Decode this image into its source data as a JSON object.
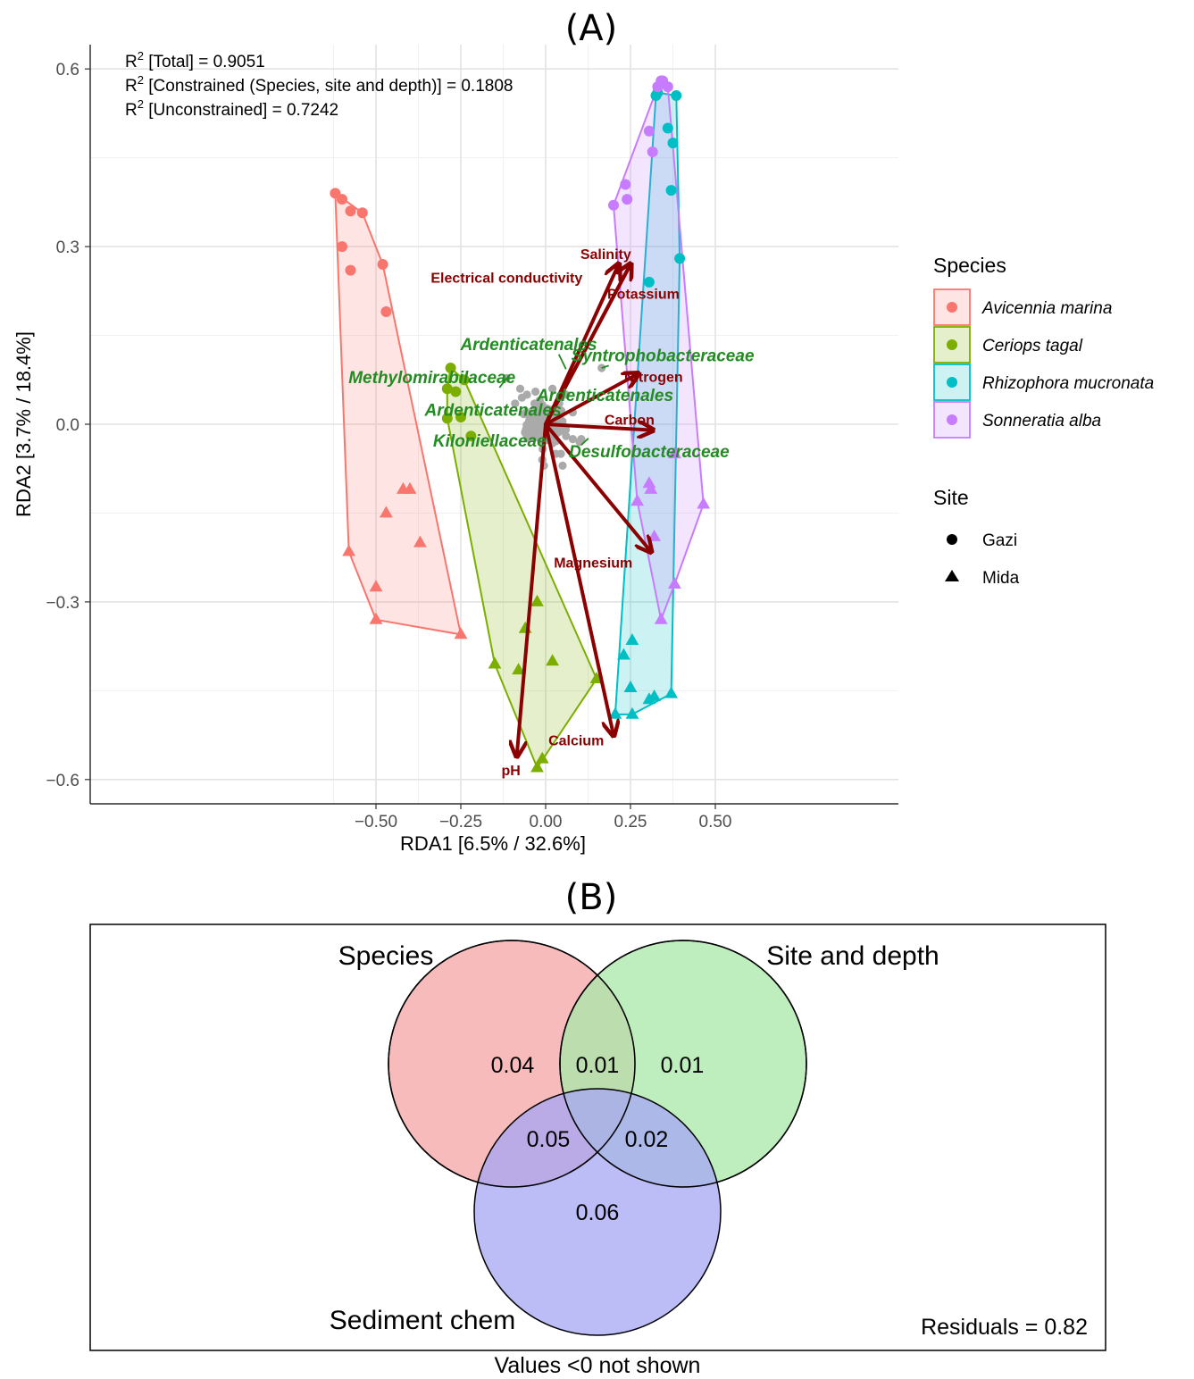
{
  "panel_a": {
    "title": "(A)",
    "stats": [
      {
        "pre": "R",
        "sup": "2",
        "text": " [Total] = 0.9051"
      },
      {
        "pre": "R",
        "sup": "2",
        "text": " [Constrained (Species, site and depth)] = 0.1808"
      },
      {
        "pre": "R",
        "sup": "2",
        "text": " [Unconstrained] = 0.7242"
      }
    ],
    "legend": {
      "species_title": "Species",
      "species": [
        {
          "name": "Avicennia marina",
          "color": "#F8766D"
        },
        {
          "name": "Ceriops tagal",
          "color": "#7CAE00"
        },
        {
          "name": "Rhizophora mucronata",
          "color": "#00BFC4"
        },
        {
          "name": "Sonneratia alba",
          "color": "#C77CFF"
        }
      ],
      "site_title": "Site",
      "sites": [
        "Gazi",
        "Mida"
      ]
    }
  },
  "chart_data": {
    "type": "scatter",
    "xlabel": "RDA1 [6.5% / 32.6%]",
    "ylabel": "RDA2 [3.7% / 18.4%]",
    "xlim": [
      -0.67,
      0.52
    ],
    "ylim": [
      -0.64,
      0.64
    ],
    "xticks": [
      -0.5,
      -0.25,
      0.0,
      0.25,
      0.5
    ],
    "xtick_labels": [
      "−0.50",
      "−0.25",
      "0.00",
      "0.25",
      "0.50"
    ],
    "yticks": [
      -0.6,
      -0.3,
      0.0,
      0.3,
      0.6
    ],
    "ytick_labels": [
      "−0.6",
      "−0.3",
      "0.0",
      "0.3",
      "0.6"
    ],
    "grid": true,
    "samples": [
      {
        "species": "Avicennia marina",
        "site": "Gazi",
        "points": [
          [
            -0.62,
            0.39
          ],
          [
            -0.6,
            0.38
          ],
          [
            -0.575,
            0.36
          ],
          [
            -0.54,
            0.357
          ],
          [
            -0.6,
            0.3
          ],
          [
            -0.575,
            0.26
          ],
          [
            -0.48,
            0.27
          ],
          [
            -0.47,
            0.19
          ]
        ]
      },
      {
        "species": "Avicennia marina",
        "site": "Mida",
        "points": [
          [
            -0.58,
            -0.215
          ],
          [
            -0.5,
            -0.275
          ],
          [
            -0.5,
            -0.33
          ],
          [
            -0.47,
            -0.15
          ],
          [
            -0.42,
            -0.11
          ],
          [
            -0.4,
            -0.11
          ],
          [
            -0.37,
            -0.2
          ],
          [
            -0.25,
            -0.355
          ]
        ]
      },
      {
        "species": "Ceriops tagal",
        "site": "Gazi",
        "points": [
          [
            -0.29,
            0.06
          ],
          [
            -0.29,
            0.01
          ],
          [
            -0.28,
            0.095
          ],
          [
            -0.265,
            0.055
          ],
          [
            -0.24,
            0.075
          ],
          [
            -0.25,
            0.012
          ],
          [
            -0.22,
            -0.02
          ]
        ]
      },
      {
        "species": "Ceriops tagal",
        "site": "Mida",
        "points": [
          [
            -0.15,
            -0.405
          ],
          [
            -0.08,
            -0.415
          ],
          [
            -0.06,
            -0.345
          ],
          [
            -0.025,
            -0.3
          ],
          [
            0.02,
            -0.4
          ],
          [
            0.15,
            -0.43
          ],
          [
            -0.025,
            -0.58
          ],
          [
            -0.01,
            -0.565
          ]
        ]
      },
      {
        "species": "Rhizophora mucronata",
        "site": "Gazi",
        "points": [
          [
            0.325,
            0.555
          ],
          [
            0.33,
            0.56
          ],
          [
            0.385,
            0.555
          ],
          [
            0.36,
            0.5
          ],
          [
            0.375,
            0.475
          ],
          [
            0.37,
            0.395
          ],
          [
            0.395,
            0.28
          ],
          [
            0.305,
            0.24
          ]
        ]
      },
      {
        "species": "Rhizophora mucronata",
        "site": "Mida",
        "points": [
          [
            0.23,
            -0.39
          ],
          [
            0.255,
            -0.365
          ],
          [
            0.25,
            -0.445
          ],
          [
            0.305,
            -0.465
          ],
          [
            0.32,
            -0.46
          ],
          [
            0.37,
            -0.455
          ],
          [
            0.255,
            -0.49
          ],
          [
            0.205,
            -0.49
          ]
        ]
      },
      {
        "species": "Sonneratia alba",
        "site": "Gazi",
        "points": [
          [
            0.34,
            0.58
          ],
          [
            0.345,
            0.58
          ],
          [
            0.36,
            0.57
          ],
          [
            0.33,
            0.57
          ],
          [
            0.305,
            0.495
          ],
          [
            0.315,
            0.46
          ],
          [
            0.235,
            0.405
          ],
          [
            0.24,
            0.38
          ],
          [
            0.2,
            0.37
          ]
        ]
      },
      {
        "species": "Sonneratia alba",
        "site": "Mida",
        "points": [
          [
            0.27,
            -0.13
          ],
          [
            0.305,
            -0.1
          ],
          [
            0.31,
            -0.11
          ],
          [
            0.32,
            -0.19
          ],
          [
            0.38,
            -0.05
          ],
          [
            0.465,
            -0.135
          ],
          [
            0.38,
            -0.27
          ],
          [
            0.34,
            -0.33
          ]
        ]
      }
    ],
    "taxa_cloud_color": "#aaaaaa",
    "env_vectors": [
      {
        "name": "Salinity",
        "x": 0.215,
        "y": 0.27,
        "label_x": 0.177,
        "label_y": 0.288
      },
      {
        "name": "Electrical  conductivity",
        "x": 0.25,
        "y": 0.27,
        "label_x": -0.115,
        "label_y": 0.248
      },
      {
        "name": "Potassium",
        "x": 0.25,
        "y": 0.27,
        "label_x": 0.288,
        "label_y": 0.221
      },
      {
        "name": "Nitrogen",
        "x": 0.272,
        "y": 0.085,
        "label_x": 0.318,
        "label_y": 0.081
      },
      {
        "name": "Carbon",
        "x": 0.315,
        "y": -0.01,
        "label_x": 0.247,
        "label_y": 0.008
      },
      {
        "name": "Magnesium",
        "x": 0.31,
        "y": -0.215,
        "label_x": 0.14,
        "label_y": -0.233
      },
      {
        "name": "Calcium",
        "x": 0.2,
        "y": -0.525,
        "label_x": 0.09,
        "label_y": -0.533
      },
      {
        "name": "pH",
        "x": -0.085,
        "y": -0.56,
        "label_x": -0.102,
        "label_y": -0.584
      }
    ],
    "taxa_labels": [
      {
        "name": "Ardenticatenales",
        "x": -0.05,
        "y": 0.136,
        "px": 0.06,
        "py": 0.093,
        "leader": true
      },
      {
        "name": "Methylomirabilaceae",
        "x": -0.335,
        "y": 0.08,
        "px": -0.115,
        "py": 0.078,
        "leader": true
      },
      {
        "name": "Syntrophobacteraceae",
        "x": 0.345,
        "y": 0.117,
        "px": 0.165,
        "py": 0.095,
        "leader": true
      },
      {
        "name": "Ardenticatenales",
        "x": 0.175,
        "y": 0.05,
        "px": 0,
        "py": 0,
        "leader": false
      },
      {
        "name": "Ardenticatenales",
        "x": -0.155,
        "y": 0.025,
        "px": 0,
        "py": 0,
        "leader": false
      },
      {
        "name": "Kiloniellaceae",
        "x": -0.165,
        "y": -0.027,
        "px": 0,
        "py": 0,
        "leader": false
      },
      {
        "name": "Desulfobacteraceae",
        "x": 0.305,
        "y": -0.045,
        "px": 0.105,
        "py": -0.035,
        "leader": true
      }
    ]
  },
  "panel_b": {
    "title": "(B)",
    "sets": {
      "species": "Species",
      "site_depth": "Site and depth",
      "sediment": "Sediment chem"
    },
    "colors": {
      "species": "#F4A4A4",
      "site_depth": "#A8E8A8",
      "sediment": "#A6A6F4"
    },
    "values": {
      "species_only": "0.04",
      "species_site": "0.01",
      "site_only": "0.01",
      "species_sediment": "0.05",
      "site_sediment": "0.02",
      "sediment_only": "0.06"
    },
    "residuals": "Residuals = 0.82",
    "footnote": "Values <0 not shown"
  }
}
